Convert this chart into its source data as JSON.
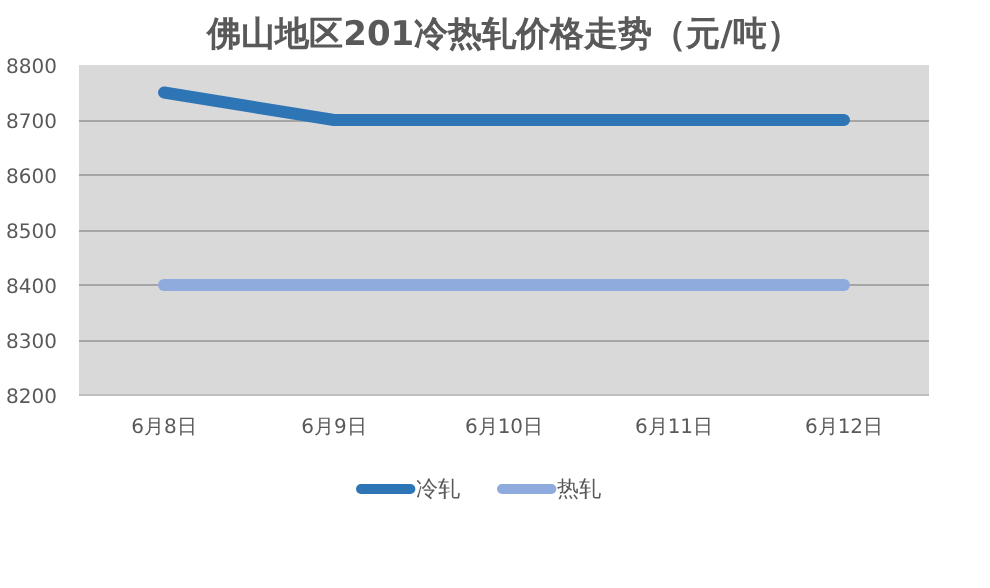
{
  "chart_data": {
    "type": "line",
    "title": "佛山地区201冷热轧价格走势（元/吨）",
    "categories": [
      "6月8日",
      "6月9日",
      "6月10日",
      "6月11日",
      "6月12日"
    ],
    "series": [
      {
        "name": "冷轧",
        "color": "#2e75b6",
        "values": [
          8750,
          8700,
          8700,
          8700,
          8700
        ]
      },
      {
        "name": "热轧",
        "color": "#8faadc",
        "values": [
          8400,
          8400,
          8400,
          8400,
          8400
        ]
      }
    ],
    "ylim": [
      8200,
      8800
    ],
    "yticks": [
      8200,
      8300,
      8400,
      8500,
      8600,
      8700,
      8800
    ],
    "grid": "y",
    "legend": "bottom",
    "marker": "none",
    "line_style": "solid"
  }
}
